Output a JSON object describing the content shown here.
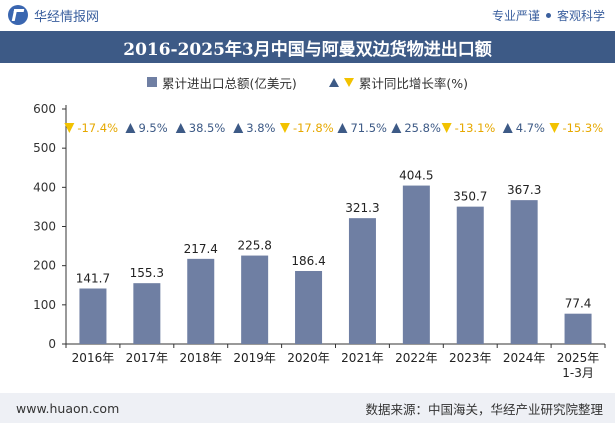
{
  "header": {
    "brand": "华经情报网",
    "tagline_1": "专业严谨",
    "tagline_2": "客观科学"
  },
  "title": "2016-2025年3月中国与阿曼双边货物进出口额",
  "legend": {
    "bar_label": "累计进出口总额(亿美元)",
    "rate_label": "累计同比增长率(%)"
  },
  "footer": {
    "website": "www.huaon.com",
    "source": "数据来源：中国海关，华经产业研究院整理"
  },
  "colors": {
    "bar": "#6f7fa3",
    "up": "#3d5a86",
    "down": "#f2c200",
    "title_bg": "#3d5a86"
  },
  "chart_data": {
    "type": "bar",
    "categories": [
      "2016年",
      "2017年",
      "2018年",
      "2019年",
      "2020年",
      "2021年",
      "2022年",
      "2023年",
      "2024年",
      "2025年\n1-3月"
    ],
    "series": [
      {
        "name": "累计进出口总额(亿美元)",
        "values": [
          141.7,
          155.3,
          217.4,
          225.8,
          186.4,
          321.3,
          404.5,
          350.7,
          367.3,
          77.4
        ]
      },
      {
        "name": "累计同比增长率(%)",
        "values": [
          -17.4,
          9.5,
          38.5,
          3.8,
          -17.8,
          71.5,
          25.8,
          -13.1,
          4.7,
          -15.3
        ]
      }
    ],
    "value_labels": [
      "141.7",
      "155.3",
      "217.4",
      "225.8",
      "186.4",
      "321.3",
      "404.5",
      "350.7",
      "367.3",
      "77.4"
    ],
    "rate_labels": [
      "-17.4%",
      "9.5%",
      "38.5%",
      "3.8%",
      "-17.8%",
      "71.5%",
      "25.8%",
      "-13.1%",
      "4.7%",
      "-15.3%"
    ],
    "yticks": [
      "0",
      "100",
      "200",
      "300",
      "400",
      "500",
      "600"
    ],
    "ylim": [
      0,
      600
    ],
    "grid": false
  }
}
